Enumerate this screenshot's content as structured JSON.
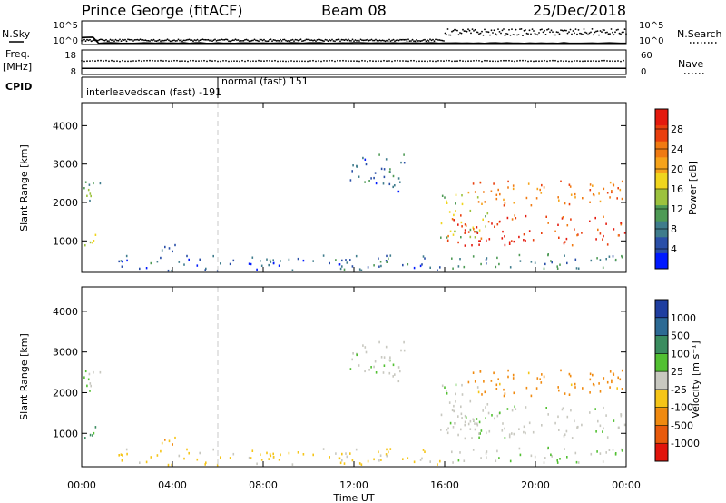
{
  "header": {
    "station": "Prince George (fitACF)",
    "beam": "Beam 08",
    "date": "25/Dec/2018"
  },
  "strip_nsky": {
    "left_label": "N.Sky",
    "right_label": "N.Search",
    "ticks_left": [
      "10^5",
      "10^0"
    ],
    "ticks_right": [
      "10^5",
      "10^0"
    ]
  },
  "strip_freq": {
    "left_label": "Freq.",
    "left_unit": "[MHz]",
    "right_label": "Nave",
    "ticks_left": [
      "18",
      "8"
    ],
    "ticks_right": [
      "60",
      "0"
    ]
  },
  "cpid": {
    "label": "CPID",
    "seg1": "interleavedscan (fast) -191",
    "seg2": "normal (fast) 151"
  },
  "panels": {
    "power": {
      "ylabel": "Slant Range [km]",
      "cbar_label": "Power [dB]",
      "cbar_ticks": [
        "28",
        "24",
        "20",
        "16",
        "12",
        "8",
        "4"
      ]
    },
    "velocity": {
      "ylabel": "Slant Range [km]",
      "cbar_label": "Velocity [m s⁻¹]",
      "cbar_ticks": [
        "1000",
        "500",
        "100",
        "25",
        "-25",
        "-100",
        "-500",
        "-1000"
      ]
    }
  },
  "xaxis": {
    "label": "Time UT",
    "ticks": [
      "00:00",
      "04:00",
      "08:00",
      "12:00",
      "16:00",
      "20:00",
      "00:00"
    ]
  },
  "colors": {
    "power_scale": [
      "#0019ff",
      "#2a4fa8",
      "#3f7c8c",
      "#4e9a55",
      "#9cc23e",
      "#f0d51d",
      "#f6a31a",
      "#f07a12",
      "#e93f0e",
      "#e41a0e"
    ],
    "velocity_scale": [
      "#1f3ea0",
      "#2c6a94",
      "#3a8c5f",
      "#52c032",
      "#c8c8c0",
      "#f5c518",
      "#f08a10",
      "#e85a0c",
      "#e1140c"
    ]
  },
  "chart_data": {
    "type": "heatmap",
    "title": "Prince George (fitACF)  Beam 08  25/Dec/2018",
    "xlabel": "Time UT",
    "ylabel": "Slant Range [km]",
    "xlim_hours": [
      0,
      24
    ],
    "ylim_km": [
      180,
      4600
    ],
    "yticks": [
      1000,
      2000,
      3000,
      4000
    ],
    "xticks_hours": [
      0,
      4,
      8,
      12,
      16,
      20,
      24
    ],
    "nsky_nsearch": {
      "log10_range": [
        0,
        5
      ],
      "nsky_level": 0.3,
      "nsearch_level_before_16h": 0.9,
      "nsearch_level_after_16h": 2.6
    },
    "freq_nave": {
      "freq_mhz": 10.5,
      "nave": 33,
      "freq_range": [
        8,
        18
      ],
      "nave_range": [
        0,
        60
      ]
    },
    "cpid_segments": [
      {
        "start_h": 0,
        "end_h": 6,
        "label": "interleavedscan (fast) -191"
      },
      {
        "start_h": 6,
        "end_h": 24,
        "label": "normal (fast) 151"
      }
    ],
    "echo_regions": [
      {
        "name": "early-high",
        "t0": 0.0,
        "t1": 0.9,
        "r0": 1850,
        "r1": 2650,
        "power_db": 10,
        "velocity_ms": 15
      },
      {
        "name": "early-mid",
        "t0": 0.1,
        "t1": 1.0,
        "r0": 800,
        "r1": 1250,
        "power_db": 16,
        "velocity_ms": 120
      },
      {
        "name": "ground-band",
        "t0": 1.5,
        "t1": 16.0,
        "r0": 250,
        "r1": 650,
        "power_db": 6,
        "velocity_ms": -40
      },
      {
        "name": "patch-04h",
        "t0": 3.2,
        "t1": 4.6,
        "r0": 750,
        "r1": 950,
        "power_db": 6,
        "velocity_ms": -120
      },
      {
        "name": "arc-12h",
        "t0": 11.8,
        "t1": 14.2,
        "r0": 2300,
        "r1": 3300,
        "power_db": 6,
        "velocity_ms": 10
      },
      {
        "name": "streak-16h",
        "t0": 15.8,
        "t1": 18.0,
        "r0": 1100,
        "r1": 2300,
        "power_db": 14,
        "velocity_ms": 5
      },
      {
        "name": "upper-band",
        "t0": 17.0,
        "t1": 24.0,
        "r0": 1950,
        "r1": 2600,
        "power_db": 22,
        "velocity_ms": -200
      },
      {
        "name": "lower-band",
        "t0": 16.0,
        "t1": 24.0,
        "r0": 900,
        "r1": 1700,
        "power_db": 26,
        "velocity_ms": 10
      },
      {
        "name": "late-ground",
        "t0": 16.0,
        "t1": 24.0,
        "r0": 300,
        "r1": 700,
        "power_db": 8,
        "velocity_ms": 15
      }
    ]
  }
}
